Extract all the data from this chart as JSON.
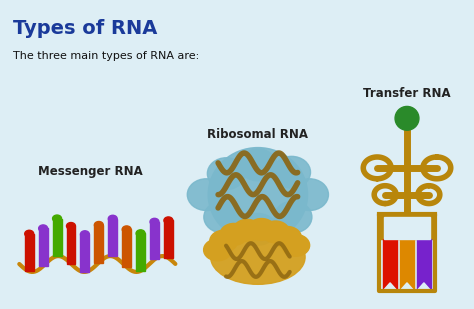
{
  "title": "Types of RNA",
  "subtitle": "The three main types of RNA are:",
  "title_color": "#1a3a9a",
  "subtitle_color": "#111111",
  "background_color": "#ddeef5",
  "labels": [
    "Messenger RNA",
    "Ribosomal RNA",
    "Transfer RNA"
  ],
  "label_fontsize": 8.5,
  "label_color": "#222222",
  "title_fontsize": 14,
  "subtitle_fontsize": 8,
  "mrna_base_colors": [
    "#cc1100",
    "#8833cc",
    "#44aa00",
    "#cc1100",
    "#8833cc",
    "#cc5500",
    "#8833cc",
    "#cc5500",
    "#44aa00",
    "#8833cc",
    "#cc1100"
  ],
  "trna_ribbon_colors": [
    "#dd1100",
    "#dd8800",
    "#7722cc"
  ],
  "rrna_blue": "#7ab8cc",
  "rrna_gold": "#d4a020",
  "rrna_brown": "#8b6410",
  "trna_gold": "#b8860b",
  "trna_green": "#2a8a2a",
  "mrna_strand_color": "#c8860a"
}
